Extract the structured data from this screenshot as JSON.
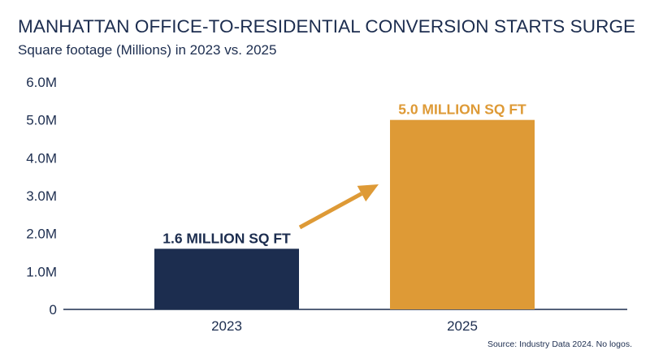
{
  "title": "MANHATTAN OFFICE-TO-RESIDENTIAL CONVERSION STARTS SURGE",
  "subtitle": "Square footage (Millions) in 2023 vs. 2025",
  "source": "Source: Industry Data 2024. No logos.",
  "colors": {
    "bar_2023": "#1c2d4f",
    "bar_2025": "#de9a36",
    "text": "#1c2d4f",
    "axis": "#1c2d4f"
  },
  "chart_data": {
    "type": "bar",
    "categories": [
      "2023",
      "2025"
    ],
    "values": [
      1.6,
      5.0
    ],
    "data_labels": [
      "1.6 MILLION SQ FT",
      "5.0 MILLION SQ FT"
    ],
    "yticks": [
      "0",
      "1.0M",
      "2.0M",
      "3.0M",
      "4.0M",
      "5.0M",
      "6.0M"
    ],
    "ylim": [
      0,
      6
    ],
    "grid": false,
    "legend": "none",
    "annotation": "arrow from 2023 bar toward 2025 bar"
  }
}
